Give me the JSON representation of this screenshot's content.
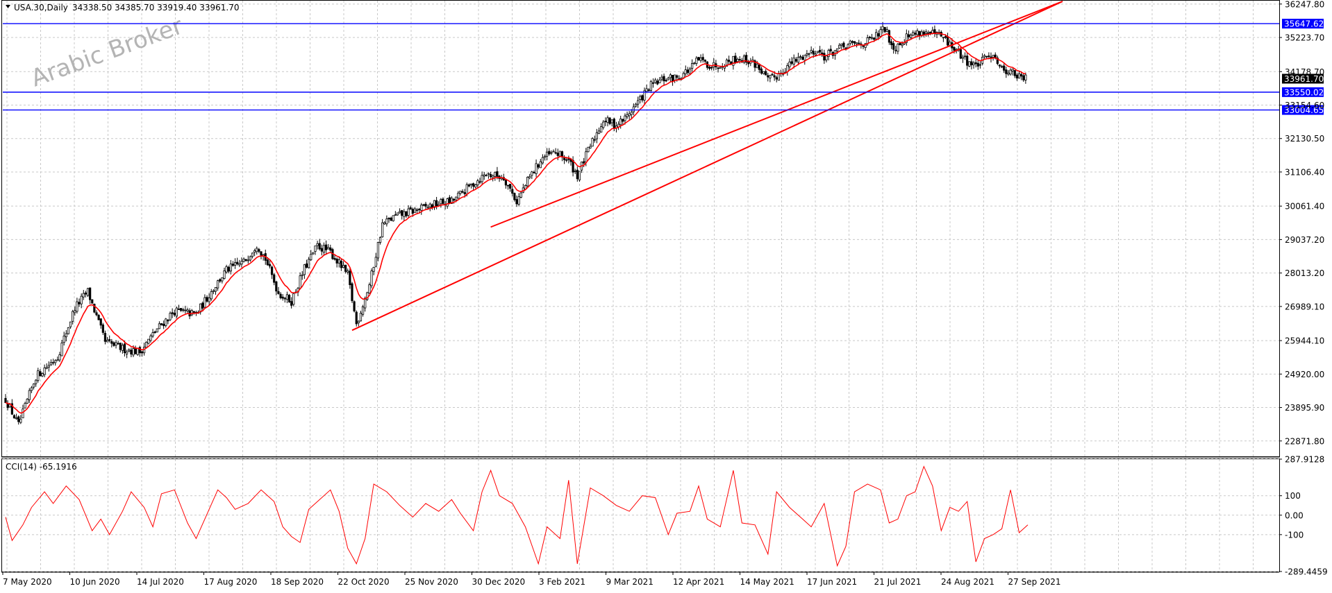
{
  "chart_data": [
    {
      "type": "candlestick",
      "header": {
        "symbol": "USA.30,Daily",
        "ohlc": "34338.50 34385.70 33919.40 33961.70"
      },
      "watermark": "Arabic Broker",
      "y_ticks": [
        "36247.80",
        "35223.70",
        "34178.70",
        "33154.60",
        "32130.50",
        "31106.40",
        "30061.40",
        "29037.20",
        "28013.20",
        "26989.10",
        "25944.10",
        "24920.00",
        "23895.90",
        "22871.80"
      ],
      "ylim": [
        22400,
        36350
      ],
      "x_ticks": [
        "7 May 2020",
        "10 Jun 2020",
        "14 Jul 2020",
        "17 Aug 2020",
        "18 Sep 2020",
        "22 Oct 2020",
        "25 Nov 2020",
        "30 Dec 2020",
        "3 Feb 2021",
        "9 Mar 2021",
        "12 Apr 2021",
        "14 May 2021",
        "17 Jun 2021",
        "21 Jul 2021",
        "24 Aug 2021",
        "27 Sep 2021"
      ],
      "current_price": "33961.70",
      "horizontal_levels": [
        {
          "label": "35647.62",
          "value": 35647.62,
          "color": "#0000ff"
        },
        {
          "label": "33550.02",
          "value": 33550.02,
          "color": "#0000ff"
        },
        {
          "label": "33004.65",
          "value": 33004.65,
          "color": "#0000ff"
        }
      ],
      "trendlines": [
        {
          "from": [
            "22 Oct 2020",
            26260
          ],
          "to": [
            "late Sep 2021",
            36300
          ],
          "color": "#ff0000"
        },
        {
          "from": [
            "mid Jan 2021",
            29420
          ],
          "to": [
            "late Sep 2021",
            36300
          ],
          "color": "#ff0000"
        }
      ],
      "moving_average": {
        "color": "#ff0000"
      },
      "close_path": [
        [
          0,
          24150
        ],
        [
          6,
          23350
        ],
        [
          14,
          24850
        ],
        [
          24,
          25450
        ],
        [
          32,
          26950
        ],
        [
          38,
          27450
        ],
        [
          46,
          25900
        ],
        [
          54,
          25700
        ],
        [
          62,
          25600
        ],
        [
          70,
          26300
        ],
        [
          78,
          26850
        ],
        [
          88,
          26750
        ],
        [
          96,
          27550
        ],
        [
          102,
          28100
        ],
        [
          110,
          28350
        ],
        [
          116,
          28900
        ],
        [
          120,
          28450
        ],
        [
          126,
          27400
        ],
        [
          132,
          27150
        ],
        [
          138,
          28150
        ],
        [
          144,
          28850
        ],
        [
          150,
          28650
        ],
        [
          158,
          27950
        ],
        [
          162,
          26450
        ],
        [
          168,
          27650
        ],
        [
          174,
          29500
        ],
        [
          180,
          29750
        ],
        [
          190,
          29950
        ],
        [
          200,
          30150
        ],
        [
          206,
          30200
        ],
        [
          214,
          30650
        ],
        [
          222,
          31050
        ],
        [
          230,
          30950
        ],
        [
          236,
          30200
        ],
        [
          242,
          30950
        ],
        [
          248,
          31550
        ],
        [
          254,
          31700
        ],
        [
          260,
          31450
        ],
        [
          264,
          31000
        ],
        [
          270,
          31900
        ],
        [
          276,
          32700
        ],
        [
          282,
          32550
        ],
        [
          286,
          32750
        ],
        [
          292,
          33250
        ],
        [
          298,
          33750
        ],
        [
          304,
          33950
        ],
        [
          310,
          34000
        ],
        [
          316,
          34250
        ],
        [
          320,
          34550
        ],
        [
          326,
          34350
        ],
        [
          332,
          34450
        ],
        [
          338,
          34600
        ],
        [
          344,
          34500
        ],
        [
          348,
          34300
        ],
        [
          352,
          33900
        ],
        [
          356,
          34050
        ],
        [
          362,
          34400
        ],
        [
          368,
          34650
        ],
        [
          374,
          34850
        ],
        [
          378,
          34650
        ],
        [
          384,
          34850
        ],
        [
          390,
          35000
        ],
        [
          396,
          35050
        ],
        [
          400,
          35150
        ],
        [
          406,
          35500
        ],
        [
          410,
          34900
        ],
        [
          416,
          35250
        ],
        [
          422,
          35400
        ],
        [
          426,
          35350
        ],
        [
          432,
          35250
        ],
        [
          436,
          35000
        ],
        [
          440,
          34750
        ],
        [
          444,
          34500
        ],
        [
          448,
          34350
        ],
        [
          452,
          34550
        ],
        [
          456,
          34750
        ],
        [
          460,
          34250
        ],
        [
          464,
          34200
        ],
        [
          468,
          34000
        ],
        [
          471,
          33960
        ]
      ]
    },
    {
      "type": "line",
      "name": "CCI(14) -65.1916",
      "y_ticks": [
        "287.9128",
        "100",
        "0.00",
        "-100",
        "-289.4459"
      ],
      "ylim": [
        -289.4459,
        287.9128
      ],
      "color": "#ff0000",
      "values_path": [
        [
          0,
          -10
        ],
        [
          3,
          -130
        ],
        [
          8,
          -50
        ],
        [
          12,
          40
        ],
        [
          18,
          120
        ],
        [
          22,
          60
        ],
        [
          28,
          150
        ],
        [
          34,
          80
        ],
        [
          40,
          -80
        ],
        [
          44,
          -20
        ],
        [
          48,
          -100
        ],
        [
          54,
          20
        ],
        [
          58,
          120
        ],
        [
          64,
          40
        ],
        [
          68,
          -60
        ],
        [
          72,
          110
        ],
        [
          78,
          130
        ],
        [
          84,
          -40
        ],
        [
          88,
          -120
        ],
        [
          92,
          -20
        ],
        [
          98,
          130
        ],
        [
          102,
          90
        ],
        [
          106,
          30
        ],
        [
          112,
          60
        ],
        [
          118,
          130
        ],
        [
          124,
          70
        ],
        [
          128,
          -60
        ],
        [
          132,
          -110
        ],
        [
          136,
          -140
        ],
        [
          140,
          30
        ],
        [
          144,
          70
        ],
        [
          150,
          130
        ],
        [
          154,
          20
        ],
        [
          158,
          -170
        ],
        [
          162,
          -250
        ],
        [
          166,
          -120
        ],
        [
          170,
          160
        ],
        [
          176,
          120
        ],
        [
          182,
          50
        ],
        [
          188,
          -10
        ],
        [
          194,
          60
        ],
        [
          200,
          20
        ],
        [
          206,
          80
        ],
        [
          210,
          10
        ],
        [
          216,
          -80
        ],
        [
          220,
          120
        ],
        [
          224,
          230
        ],
        [
          228,
          100
        ],
        [
          234,
          60
        ],
        [
          240,
          -60
        ],
        [
          246,
          -250
        ],
        [
          250,
          -60
        ],
        [
          256,
          -120
        ],
        [
          260,
          180
        ],
        [
          264,
          -250
        ],
        [
          270,
          140
        ],
        [
          276,
          100
        ],
        [
          282,
          50
        ],
        [
          288,
          20
        ],
        [
          294,
          100
        ],
        [
          300,
          90
        ],
        [
          306,
          -100
        ],
        [
          310,
          10
        ],
        [
          316,
          20
        ],
        [
          320,
          150
        ],
        [
          324,
          -20
        ],
        [
          330,
          -60
        ],
        [
          336,
          230
        ],
        [
          340,
          -40
        ],
        [
          346,
          -50
        ],
        [
          352,
          -200
        ],
        [
          356,
          120
        ],
        [
          362,
          40
        ],
        [
          368,
          -20
        ],
        [
          372,
          -60
        ],
        [
          378,
          60
        ],
        [
          384,
          -260
        ],
        [
          388,
          -160
        ],
        [
          392,
          120
        ],
        [
          398,
          160
        ],
        [
          404,
          130
        ],
        [
          408,
          -40
        ],
        [
          412,
          -20
        ],
        [
          416,
          100
        ],
        [
          420,
          120
        ],
        [
          424,
          250
        ],
        [
          428,
          150
        ],
        [
          432,
          -80
        ],
        [
          436,
          40
        ],
        [
          440,
          20
        ],
        [
          444,
          70
        ],
        [
          448,
          -240
        ],
        [
          452,
          -120
        ],
        [
          456,
          -100
        ],
        [
          460,
          -70
        ],
        [
          464,
          130
        ],
        [
          468,
          -90
        ],
        [
          472,
          -50
        ]
      ]
    }
  ]
}
